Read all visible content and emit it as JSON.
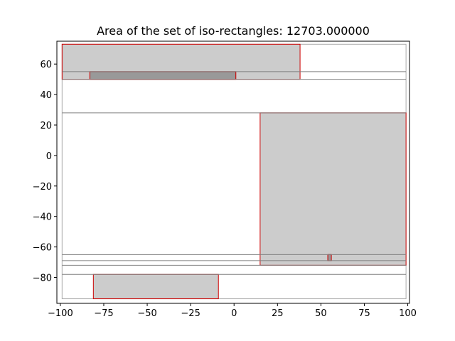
{
  "chart_data": {
    "type": "rectangles",
    "title": "Area of the set of iso-rectangles: 12703.000000",
    "xlabel": "",
    "ylabel": "",
    "xlim": [
      -102,
      101
    ],
    "ylim": [
      -97,
      75
    ],
    "x_ticks": [
      -100,
      -75,
      -50,
      -25,
      0,
      25,
      50,
      75,
      100
    ],
    "x_tick_labels": [
      "−100",
      "−75",
      "−50",
      "−25",
      "0",
      "25",
      "50",
      "75",
      "100"
    ],
    "y_ticks": [
      -80,
      -60,
      -40,
      -20,
      0,
      20,
      40,
      60
    ],
    "y_tick_labels": [
      "−80",
      "−60",
      "−40",
      "−20",
      "0",
      "20",
      "40",
      "60"
    ],
    "grid": false,
    "colors": {
      "fill": "#cccccc",
      "rect_edge": "#cc0000",
      "sweep_line": "#808080",
      "bounding_box": "#aaaaaa",
      "axes": "#000000"
    },
    "bounding_box": {
      "x0": -99,
      "x1": 99,
      "y0": -94,
      "y1": 73
    },
    "rectangles": [
      {
        "x0": -99,
        "x1": 38,
        "y0": 50,
        "y1": 73
      },
      {
        "x0": -83,
        "x1": 1,
        "y0": 50,
        "y1": 55
      },
      {
        "x0": 15,
        "x1": 99,
        "y0": -72,
        "y1": 28
      },
      {
        "x0": 54,
        "x1": 56,
        "y0": -69,
        "y1": -65
      },
      {
        "x0": -81,
        "x1": -9,
        "y0": -94,
        "y1": -78
      }
    ],
    "sweep_lines_y": [
      55,
      50,
      28,
      -65,
      -69,
      -72,
      -78
    ]
  }
}
